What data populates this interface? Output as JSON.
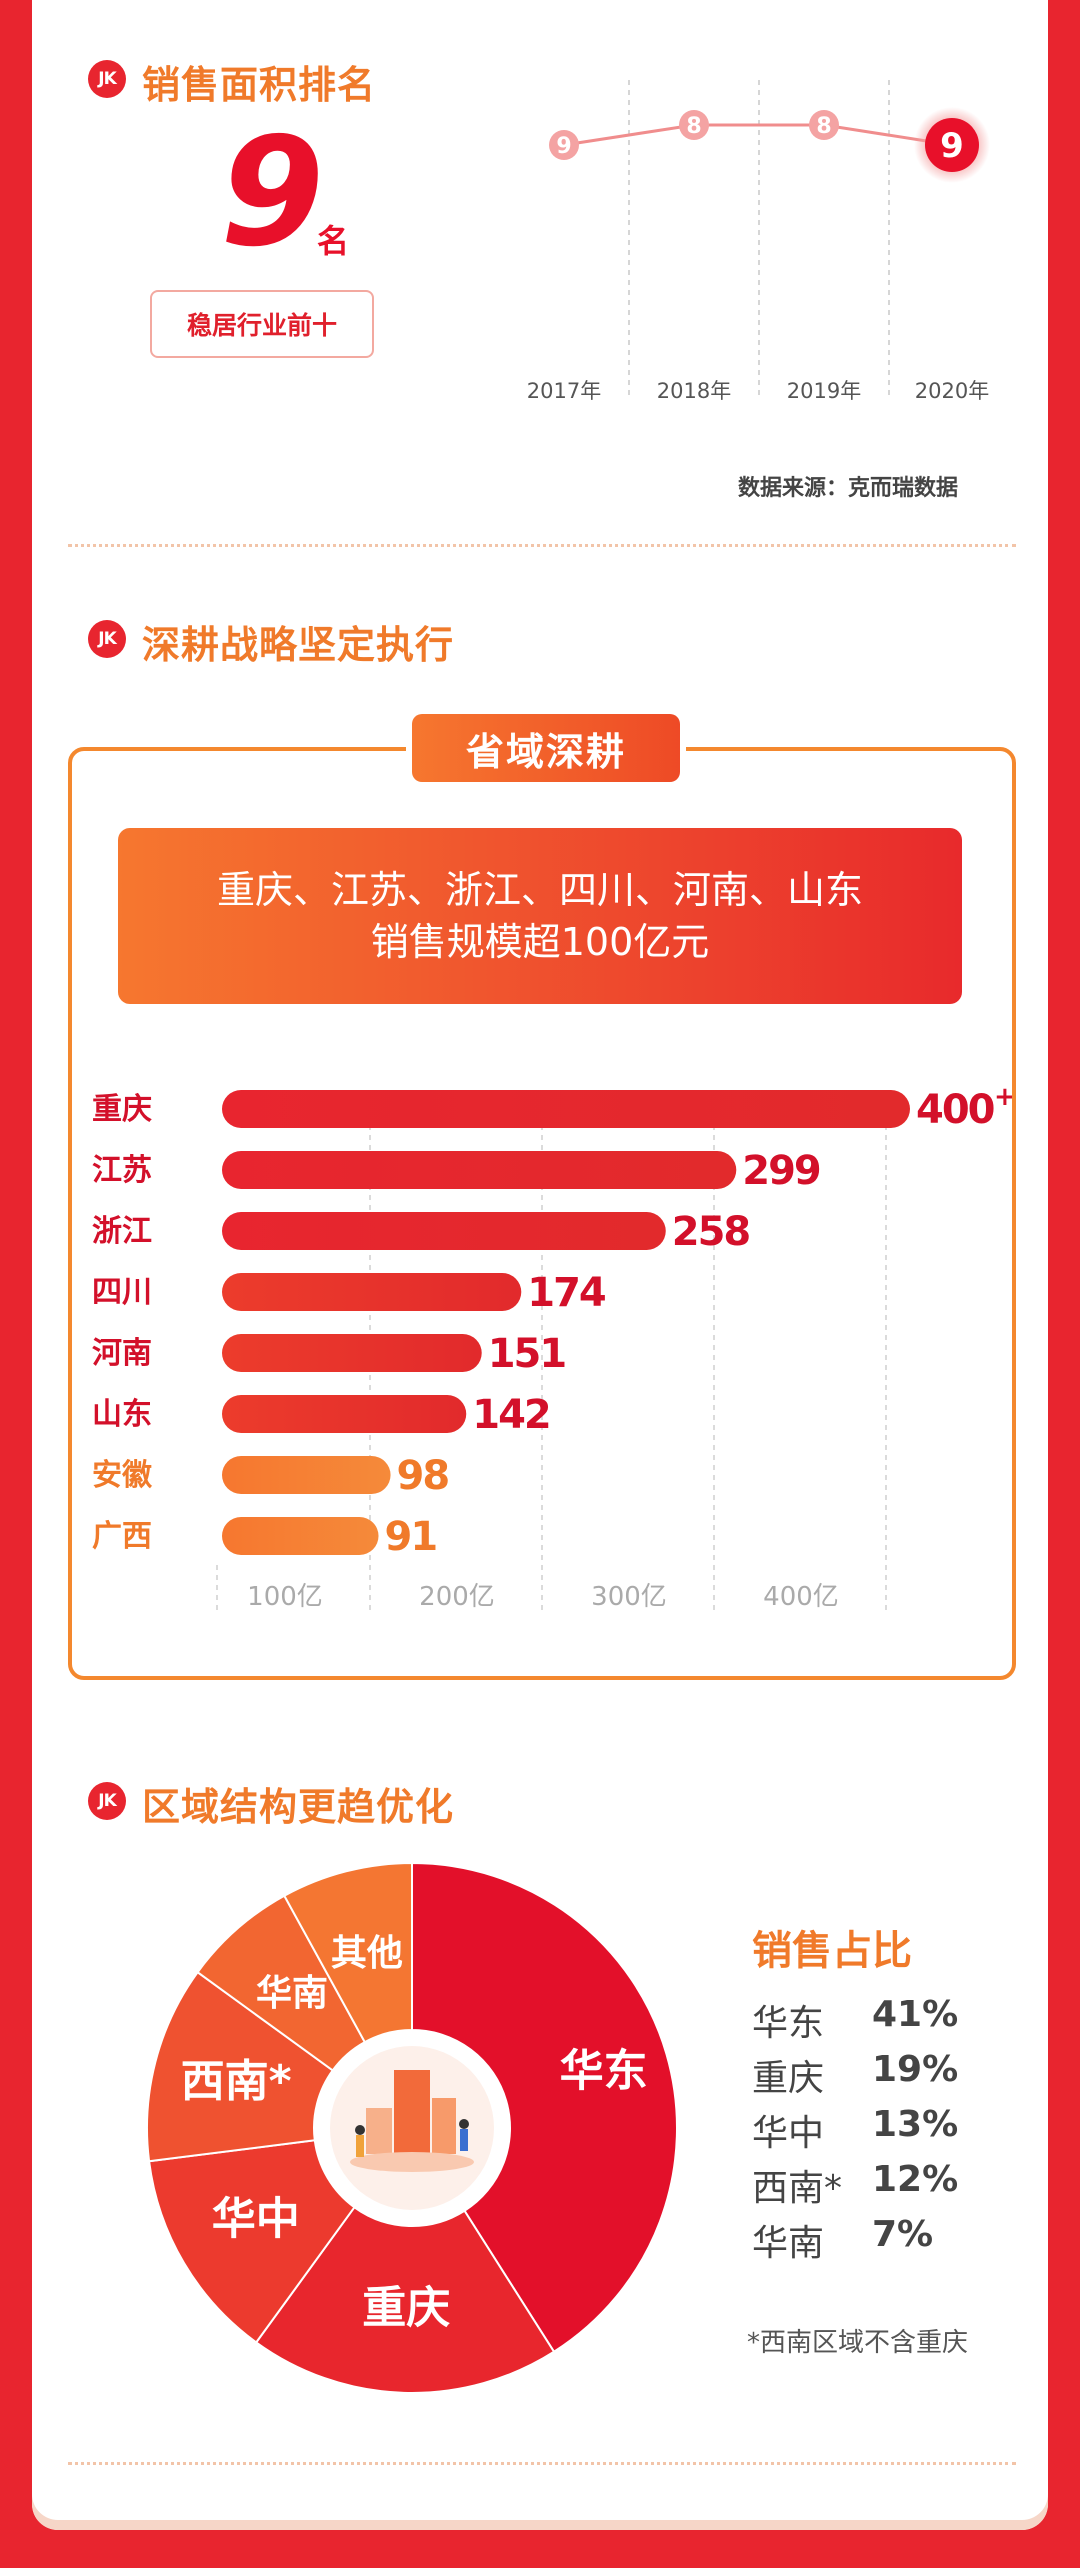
{
  "section_rank": {
    "badge": "JK",
    "title": "销售面积排名",
    "big_number": "9",
    "unit": "名",
    "tag": "稳居行业前十",
    "source": "数据来源：克而瑞数据"
  },
  "section_strategy": {
    "badge": "JK",
    "title": "深耕战略坚定执行",
    "tab": "省域深耕",
    "banner_line1": "重庆、江苏、浙江、四川、河南、山东",
    "banner_line2": "销售规模超100亿元"
  },
  "section_region": {
    "badge": "JK",
    "title": "区域结构更趋优化",
    "share_title": "销售占比",
    "share_rows": [
      {
        "label": "华东",
        "pct": "41%"
      },
      {
        "label": "重庆",
        "pct": "19%"
      },
      {
        "label": "华中",
        "pct": "13%"
      },
      {
        "label": "西南*",
        "pct": "12%"
      },
      {
        "label": "华南",
        "pct": "7%"
      }
    ],
    "footnote": "*西南区域不含重庆"
  },
  "colors": {
    "primary_red": "#e8102a",
    "accent_orange": "#f07a2a",
    "bar_red": "#e8252f",
    "bar_orange": "#f6772f"
  },
  "chart_data": [
    {
      "type": "line",
      "x": [
        "2017年",
        "2018年",
        "2019年",
        "2020年"
      ],
      "values": [
        9,
        8,
        8,
        9
      ],
      "data_labels": [
        "9",
        "8",
        "8",
        "9"
      ],
      "highlight_last": true
    },
    {
      "type": "bar",
      "orientation": "horizontal",
      "categories": [
        "重庆",
        "江苏",
        "浙江",
        "四川",
        "河南",
        "山东",
        "安徽",
        "广西"
      ],
      "values": [
        400,
        299,
        258,
        174,
        151,
        142,
        98,
        91
      ],
      "data_labels": [
        "400",
        "299",
        "258",
        "174",
        "151",
        "142",
        "98",
        "91"
      ],
      "label_suffix_first": "+",
      "x_ticks": [
        "100亿",
        "200亿",
        "300亿",
        "400亿"
      ],
      "xlim": [
        0,
        400
      ]
    },
    {
      "type": "pie",
      "style": "donut",
      "labels": [
        "华东",
        "重庆",
        "华中",
        "西南*",
        "华南",
        "其他"
      ],
      "values": [
        41,
        19,
        13,
        12,
        7,
        8
      ],
      "colors": [
        "#e3102a",
        "#e8262d",
        "#ec3a2e",
        "#ef5230",
        "#f26631",
        "#f47632"
      ]
    }
  ]
}
